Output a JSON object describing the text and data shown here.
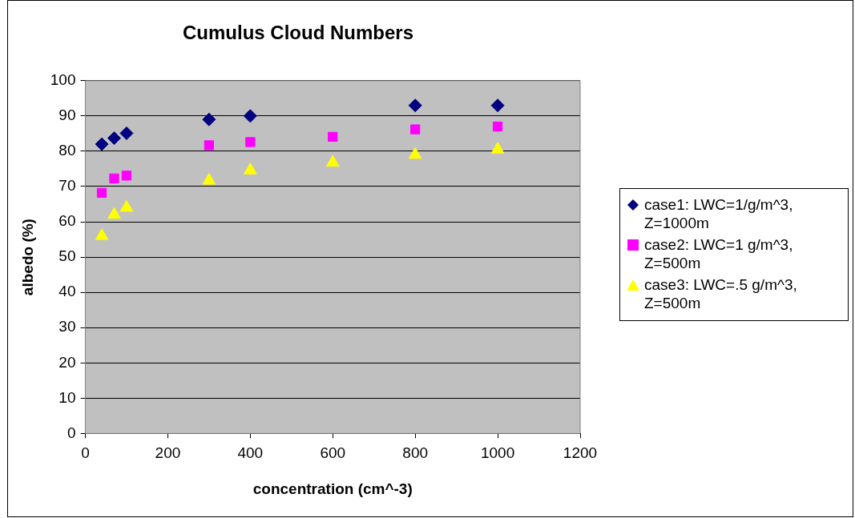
{
  "chart_data": {
    "type": "scatter",
    "title": "Cumulus Cloud Numbers",
    "xlabel": "concentration (cm^-3)",
    "ylabel": "albedo (%)",
    "xlim": [
      0,
      1200
    ],
    "xticks": [
      0,
      200,
      400,
      600,
      800,
      1000,
      1200
    ],
    "ylim": [
      0,
      100
    ],
    "yticks": [
      0,
      10,
      20,
      30,
      40,
      50,
      60,
      70,
      80,
      90,
      100
    ],
    "grid": "y",
    "legend": "right",
    "series": [
      {
        "name": "case1: LWC=1/g/m^3, Z=1000m",
        "color": "#000080",
        "marker": "diamond",
        "x": [
          40,
          70,
          100,
          300,
          400,
          800,
          1000
        ],
        "values": [
          82,
          83.7,
          85.1,
          89,
          90,
          93,
          93
        ]
      },
      {
        "name": "case2: LWC=1 g/m^3, Z=500m",
        "color": "#ff00ff",
        "marker": "square",
        "x": [
          40,
          70,
          100,
          300,
          400,
          600,
          800,
          1000
        ],
        "values": [
          68.2,
          72.3,
          73.1,
          81.7,
          82.6,
          84.1,
          86.2,
          87
        ]
      },
      {
        "name": "case3: LWC=.5 g/m^3, Z=500m",
        "color": "#ffff00",
        "marker": "triangle",
        "x": [
          40,
          70,
          100,
          300,
          400,
          600,
          800,
          1000
        ],
        "values": [
          56,
          62,
          64,
          71.7,
          74.6,
          76.8,
          79,
          80.5
        ]
      }
    ]
  }
}
